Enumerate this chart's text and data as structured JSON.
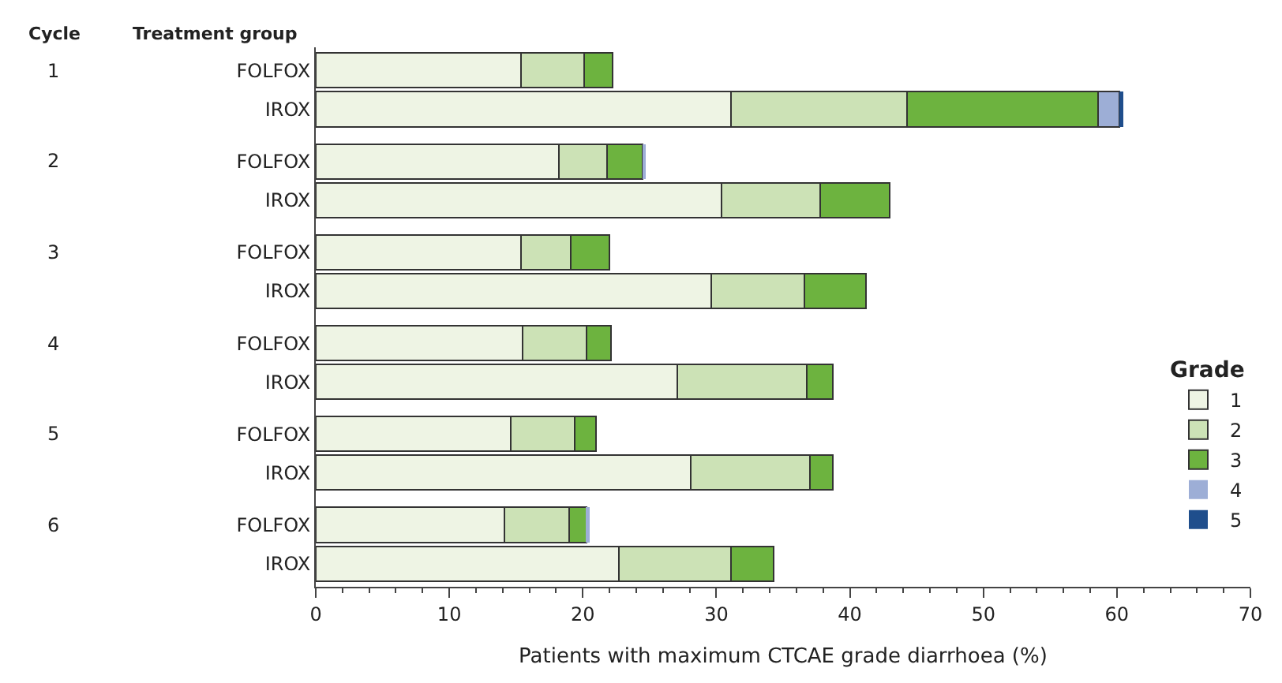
{
  "chart_data": {
    "type": "bar",
    "orientation": "horizontal",
    "stacked": true,
    "xlabel": "Patients with maximum CTCAE grade diarrhoea (%)",
    "legend_title": "Grade",
    "legend": "bottom right",
    "categories": [
      "FOLFOX",
      "IROX",
      "FOLFOX",
      "IROX",
      "FOLFOX",
      "IROX",
      "FOLFOX",
      "IROX",
      "FOLFOX",
      "IROX",
      "FOLFOX",
      "IROX"
    ],
    "annotations": [
      "Cycle",
      "Treatment group",
      "1",
      "2",
      "3",
      "4",
      "5",
      "6"
    ],
    "xlim": [
      0,
      70
    ],
    "xticks": [
      0,
      10,
      20,
      30,
      40,
      50,
      60,
      70
    ],
    "series": [
      {
        "name": "1",
        "color": "#eef4e4",
        "values": [
          15.4,
          31.1,
          18.2,
          30.4,
          15.4,
          29.6,
          15.5,
          27.1,
          14.6,
          28.1,
          14.1,
          22.7
        ]
      },
      {
        "name": "2",
        "color": "#cce2b6",
        "values": [
          4.7,
          13.2,
          3.6,
          7.4,
          3.7,
          7.0,
          4.8,
          9.7,
          4.8,
          8.9,
          4.9,
          8.4
        ]
      },
      {
        "name": "3",
        "color": "#6db33f",
        "values": [
          2.1,
          14.3,
          2.7,
          5.2,
          2.9,
          4.6,
          1.8,
          1.9,
          1.6,
          1.7,
          1.3,
          3.2
        ]
      },
      {
        "name": "4",
        "color": "#9daed6",
        "values": [
          0,
          1.6,
          0.2,
          0,
          0,
          0,
          0,
          0,
          0,
          0,
          0.2,
          0
        ]
      },
      {
        "name": "5",
        "color": "#1f4e8c",
        "values": [
          0,
          0.3,
          0,
          0,
          0,
          0,
          0,
          0,
          0,
          0,
          0,
          0
        ]
      }
    ]
  }
}
